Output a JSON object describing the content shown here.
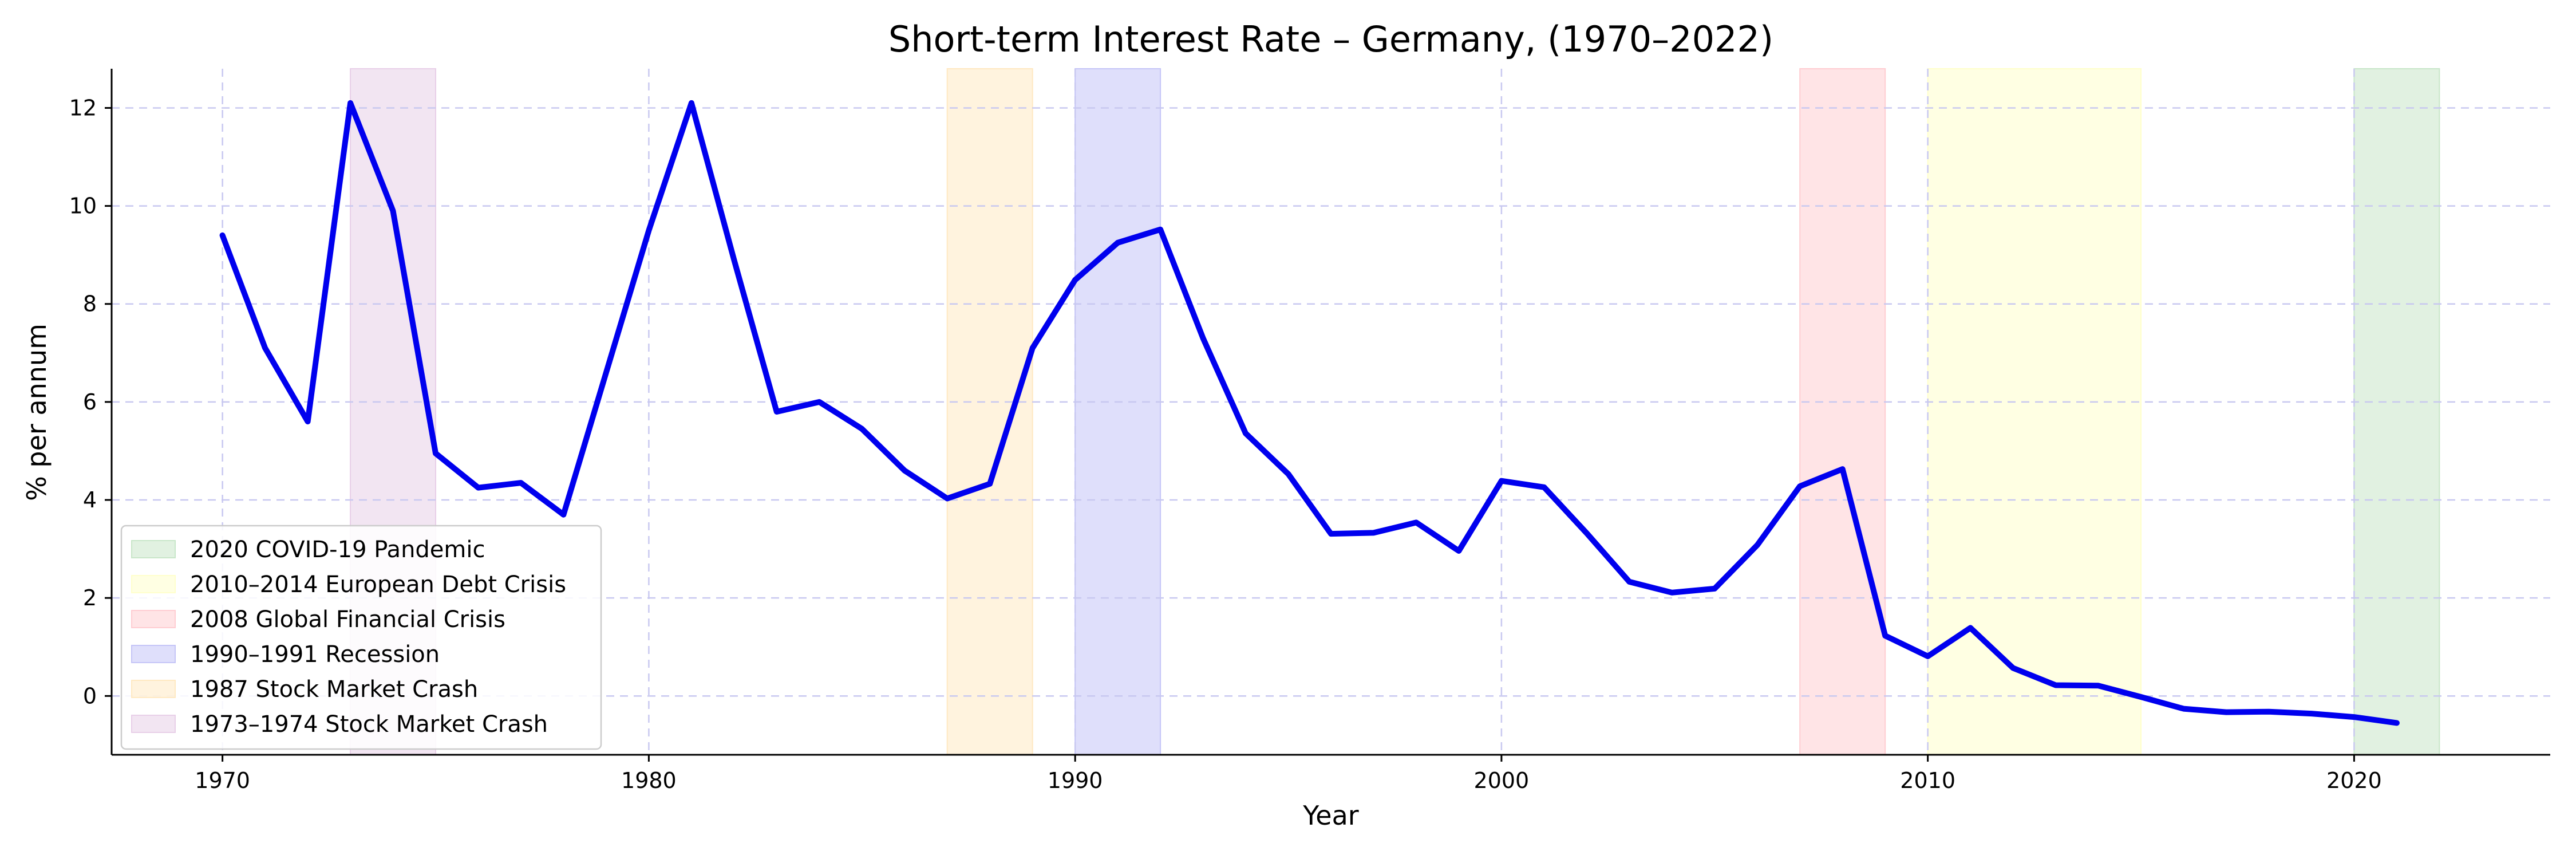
{
  "chart_data": {
    "type": "line",
    "title": "Short-term Interest Rate – Germany, (1970–2022)",
    "xlabel": "Year",
    "ylabel": "% per annum",
    "xlim": [
      1967.4,
      2024.6
    ],
    "ylim": [
      -1.2,
      12.8
    ],
    "xticks": [
      1970,
      1980,
      1990,
      2000,
      2010,
      2020
    ],
    "yticks": [
      0,
      2,
      4,
      6,
      8,
      10,
      12
    ],
    "grid": true,
    "legend_position": "lower-left",
    "series": [
      {
        "color": "#0000ee",
        "x": [
          1970,
          1971,
          1972,
          1973,
          1974,
          1975,
          1976,
          1977,
          1978,
          1979,
          1980,
          1981,
          1982,
          1983,
          1984,
          1985,
          1986,
          1987,
          1988,
          1989,
          1990,
          1991,
          1992,
          1993,
          1994,
          1995,
          1996,
          1997,
          1998,
          1999,
          2000,
          2001,
          2002,
          2003,
          2004,
          2005,
          2006,
          2007,
          2008,
          2009,
          2010,
          2011,
          2012,
          2013,
          2014,
          2015,
          2016,
          2017,
          2018,
          2019,
          2020,
          2021
        ],
        "y": [
          9.4,
          7.1,
          5.6,
          12.1,
          9.9,
          4.95,
          4.25,
          4.35,
          3.7,
          6.6,
          9.5,
          12.1,
          8.9,
          5.8,
          6.0,
          5.45,
          4.6,
          4.03,
          4.33,
          7.1,
          8.49,
          9.25,
          9.52,
          7.3,
          5.36,
          4.53,
          3.31,
          3.33,
          3.54,
          2.96,
          4.39,
          4.26,
          3.32,
          2.33,
          2.11,
          2.19,
          3.08,
          4.28,
          4.63,
          1.23,
          0.81,
          1.39,
          0.57,
          0.22,
          0.21,
          -0.02,
          -0.26,
          -0.33,
          -0.32,
          -0.36,
          -0.43,
          -0.55
        ]
      }
    ],
    "shaded_periods": [
      {
        "label": "2020 COVID-19 Pandemic",
        "start": 2020,
        "end": 2022,
        "color": "#c8e6c9"
      },
      {
        "label": "2010–2014 European Debt Crisis",
        "start": 2010,
        "end": 2015,
        "color": "#ffffcc"
      },
      {
        "label": "2008 Global Financial Crisis",
        "start": 2007,
        "end": 2009,
        "color": "#ffcdd2"
      },
      {
        "label": "1990–1991 Recession",
        "start": 1990,
        "end": 1992,
        "color": "#c5c5f7"
      },
      {
        "label": "1987 Stock Market Crash",
        "start": 1987,
        "end": 1989,
        "color": "#ffe9c2"
      },
      {
        "label": "1973–1974 Stock Market Crash",
        "start": 1973,
        "end": 1975,
        "color": "#e8cfe8"
      }
    ]
  }
}
